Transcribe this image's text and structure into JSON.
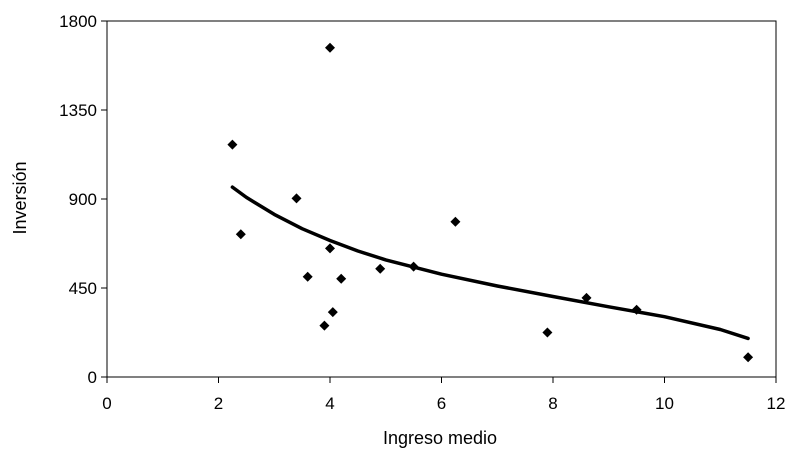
{
  "chart_data": {
    "type": "scatter",
    "title": "",
    "xlabel": "Ingreso medio",
    "ylabel": "Inversión",
    "xlim": [
      0,
      12
    ],
    "ylim": [
      0,
      1800
    ],
    "xticks": [
      "0",
      "2",
      "4",
      "6",
      "8",
      "10",
      "12"
    ],
    "yticks": [
      "0",
      "450",
      "900",
      "1350",
      "1800"
    ],
    "grid": false,
    "legend": "none",
    "marker": "diamond",
    "colors": {
      "points": "#000000",
      "trend": "#000000",
      "axes": "#000000"
    },
    "series": [
      {
        "type": "scatter",
        "points": [
          [
            2.25,
            1175
          ],
          [
            2.4,
            722
          ],
          [
            3.4,
            903
          ],
          [
            3.6,
            507
          ],
          [
            3.9,
            260
          ],
          [
            4.0,
            1665
          ],
          [
            4.0,
            650
          ],
          [
            4.05,
            328
          ],
          [
            4.2,
            497
          ],
          [
            4.9,
            547
          ],
          [
            5.5,
            558
          ],
          [
            6.25,
            785
          ],
          [
            7.9,
            225
          ],
          [
            8.6,
            400
          ],
          [
            9.5,
            340
          ],
          [
            11.5,
            100
          ]
        ]
      },
      {
        "type": "trendline",
        "points": [
          [
            2.25,
            960
          ],
          [
            2.5,
            908
          ],
          [
            3.0,
            822
          ],
          [
            3.5,
            750
          ],
          [
            4.0,
            690
          ],
          [
            4.5,
            637
          ],
          [
            5.0,
            592
          ],
          [
            6.0,
            520
          ],
          [
            7.0,
            460
          ],
          [
            8.0,
            407
          ],
          [
            9.0,
            355
          ],
          [
            10.0,
            305
          ],
          [
            11.0,
            240
          ],
          [
            11.5,
            195
          ]
        ]
      }
    ]
  }
}
